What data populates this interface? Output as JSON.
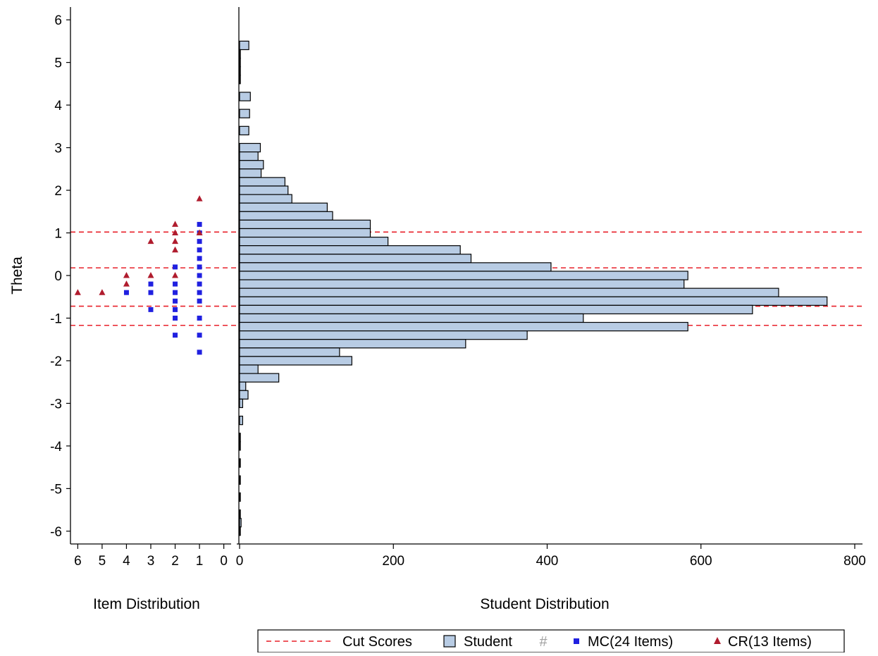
{
  "chart_data": {
    "type": "bar",
    "orientation": "horizontal",
    "ylabel": "Theta",
    "ylim": [
      -6.3,
      6.3
    ],
    "yticks": [
      "6",
      "5",
      "4",
      "3",
      "2",
      "1",
      "0",
      "-1",
      "-2",
      "-3",
      "-4",
      "-5",
      "-6"
    ],
    "item_panel": {
      "xlabel": "Item Distribution",
      "xticks": [
        "6",
        "5",
        "4",
        "3",
        "2",
        "1",
        "0"
      ],
      "xlim": [
        6.3,
        -0.3
      ]
    },
    "student_panel": {
      "xlabel": "Student Distribution",
      "xticks": [
        "0",
        "200",
        "400",
        "600",
        "800"
      ],
      "xlim": [
        0,
        800
      ]
    },
    "cut_scores": [
      1.02,
      0.18,
      -0.72,
      -1.17
    ],
    "student_bins": {
      "width": 0.2,
      "theta": [
        5.4,
        5.2,
        5.0,
        4.8,
        4.6,
        4.2,
        3.8,
        3.4,
        3.0,
        2.8,
        2.6,
        2.4,
        2.2,
        2.0,
        1.8,
        1.6,
        1.4,
        1.2,
        1.0,
        0.8,
        0.6,
        0.4,
        0.2,
        0.0,
        -0.2,
        -0.4,
        -0.6,
        -0.8,
        -1.0,
        -1.2,
        -1.4,
        -1.6,
        -1.8,
        -2.0,
        -2.2,
        -2.4,
        -2.6,
        -2.8,
        -3.0,
        -3.4,
        -3.8,
        -4.0,
        -4.4,
        -4.8,
        -5.2,
        -5.6,
        -5.8,
        -6.0
      ],
      "count": [
        12,
        1,
        1,
        1,
        1,
        14,
        13,
        12,
        27,
        24,
        31,
        28,
        59,
        63,
        68,
        114,
        121,
        170,
        170,
        193,
        287,
        301,
        405,
        583,
        578,
        701,
        764,
        667,
        447,
        583,
        374,
        294,
        130,
        146,
        24,
        51,
        8,
        11,
        4,
        4,
        1,
        1,
        1,
        1,
        1,
        1,
        2,
        1
      ]
    },
    "series": [
      {
        "name": "MC(24 Items)",
        "color": "#2020e0",
        "marker": "square",
        "points": [
          [
            1,
            1.2
          ],
          [
            1,
            1.0
          ],
          [
            1,
            0.8
          ],
          [
            1,
            0.6
          ],
          [
            1,
            0.4
          ],
          [
            1,
            0.2
          ],
          [
            1,
            0.0
          ],
          [
            1,
            -0.2
          ],
          [
            1,
            -0.4
          ],
          [
            1,
            -0.6
          ],
          [
            1,
            -1.0
          ],
          [
            1,
            -1.4
          ],
          [
            1,
            -1.8
          ],
          [
            2,
            0.2
          ],
          [
            2,
            -0.2
          ],
          [
            2,
            -0.4
          ],
          [
            2,
            -0.6
          ],
          [
            2,
            -0.8
          ],
          [
            2,
            -1.0
          ],
          [
            2,
            -1.4
          ],
          [
            3,
            -0.2
          ],
          [
            3,
            -0.4
          ],
          [
            3,
            -0.8
          ],
          [
            4,
            -0.4
          ]
        ]
      },
      {
        "name": "CR(13 Items)",
        "color": "#b01c2e",
        "marker": "triangle",
        "points": [
          [
            1,
            1.8
          ],
          [
            1,
            1.0
          ],
          [
            2,
            1.2
          ],
          [
            2,
            1.0
          ],
          [
            2,
            0.8
          ],
          [
            2,
            0.6
          ],
          [
            2,
            0.0
          ],
          [
            3,
            0.8
          ],
          [
            3,
            0.0
          ],
          [
            4,
            0.0
          ],
          [
            4,
            -0.2
          ],
          [
            5,
            -0.4
          ],
          [
            6,
            -0.4
          ]
        ]
      }
    ],
    "legend": {
      "position": "bottom",
      "entries": [
        {
          "label": "Cut Scores",
          "symbol": "dashed-line",
          "color": "#e8202a"
        },
        {
          "label": "Student",
          "symbol": "bar-swatch",
          "color": "#b8cce4"
        },
        {
          "label": "",
          "symbol": "hash-mark",
          "color": "#a0a0a0"
        },
        {
          "label": "MC(24 Items)",
          "symbol": "square",
          "color": "#2020e0"
        },
        {
          "label": "CR(13 Items)",
          "symbol": "triangle",
          "color": "#b01c2e"
        }
      ]
    },
    "colors": {
      "bar_fill": "#b8cce4",
      "bar_stroke": "#000000",
      "cut_line": "#e8202a"
    }
  }
}
